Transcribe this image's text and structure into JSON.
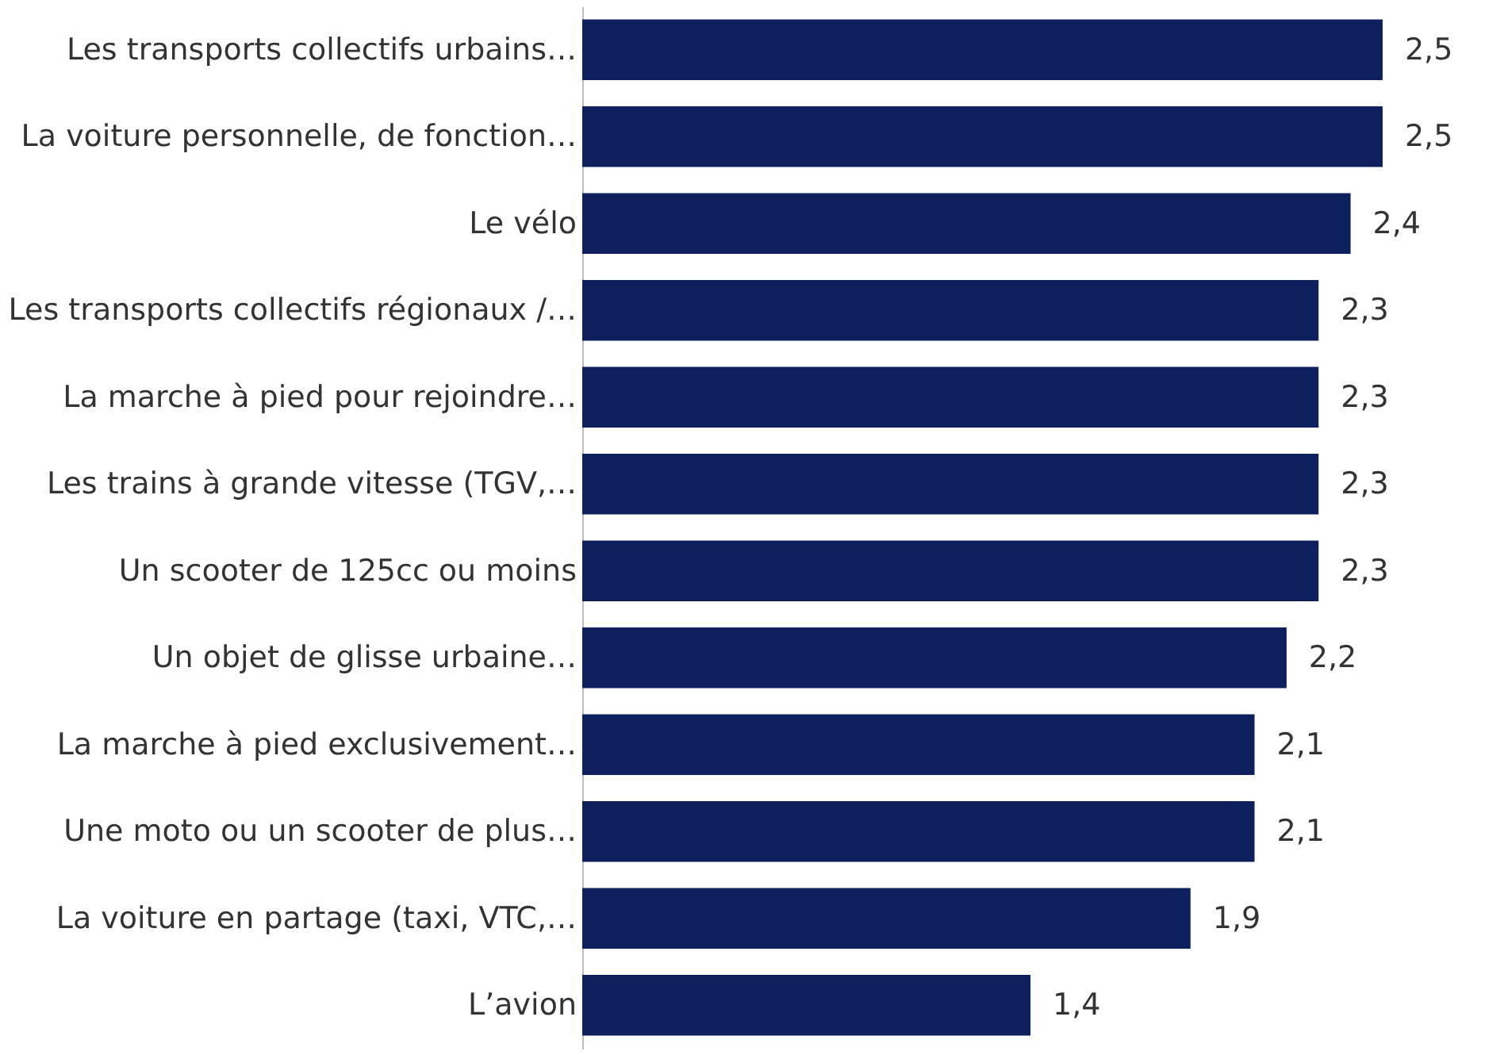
{
  "chart_data": {
    "type": "bar",
    "orientation": "horizontal",
    "categories": [
      "Les transports collectifs urbains…",
      "La voiture personnelle, de fonction…",
      "Le vélo",
      "Les transports collectifs régionaux /…",
      "La marche à pied pour rejoindre…",
      "Les trains à grande vitesse (TGV,…",
      "Un scooter de 125cc ou moins",
      "Un objet de glisse urbaine…",
      "La marche à pied exclusivement…",
      "Une moto ou un scooter de plus…",
      "La voiture en partage (taxi, VTC,…",
      "L’avion"
    ],
    "values": [
      2.5,
      2.5,
      2.4,
      2.3,
      2.3,
      2.3,
      2.3,
      2.2,
      2.1,
      2.1,
      1.9,
      1.4
    ],
    "value_labels": [
      "2,5",
      "2,5",
      "2,4",
      "2,3",
      "2,3",
      "2,3",
      "2,3",
      "2,2",
      "2,1",
      "2,1",
      "1,9",
      "1,4"
    ],
    "color": "#0d1f5c"
  }
}
